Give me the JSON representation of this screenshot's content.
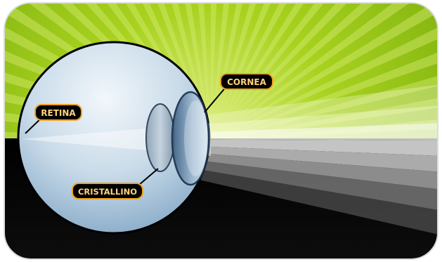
{
  "labels": {
    "cornea": "CORNEA",
    "retina": "RETINA",
    "lens": "CRISTALLINO"
  },
  "colors": {
    "sky_green": "#8fc21a",
    "sky_green_light": "#d4ea70",
    "ground_black": "#050505",
    "eye_highlight": "#e7f0f7",
    "eye_shadow": "#6b8eb2",
    "label_bg": "#000000",
    "label_border": "#f0a020",
    "label_text": "#ffd27a"
  }
}
